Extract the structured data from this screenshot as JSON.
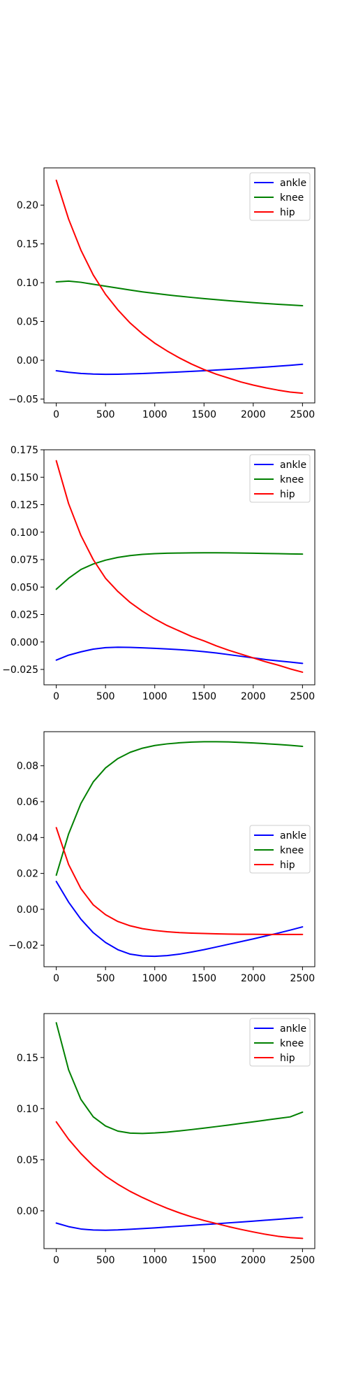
{
  "chart_data": [
    {
      "type": "line",
      "xlim": [
        -125,
        2625
      ],
      "ylim": [
        -0.055,
        0.248
      ],
      "xticks": [
        0,
        500,
        1000,
        1500,
        2000,
        2500
      ],
      "yticks": [
        -0.05,
        0.0,
        0.05,
        0.1,
        0.15,
        0.2
      ],
      "ytick_labels": [
        "−0.05",
        "0.00",
        "0.05",
        "0.10",
        "0.15",
        "0.20"
      ],
      "legend": "top-right",
      "grid": false,
      "series": [
        {
          "name": "ankle",
          "color": "#0000ff",
          "x": [
            0,
            125,
            250,
            375,
            500,
            625,
            750,
            875,
            1000,
            1125,
            1250,
            1375,
            1500,
            1625,
            1750,
            1875,
            2000,
            2125,
            2250,
            2375,
            2500
          ],
          "values": [
            -0.0135,
            -0.0155,
            -0.017,
            -0.0178,
            -0.0181,
            -0.018,
            -0.0176,
            -0.0171,
            -0.0165,
            -0.0158,
            -0.0151,
            -0.0143,
            -0.0135,
            -0.0126,
            -0.0117,
            -0.0108,
            -0.0098,
            -0.0088,
            -0.0077,
            -0.0065,
            -0.0052
          ]
        },
        {
          "name": "knee",
          "color": "#008000",
          "x": [
            0,
            125,
            250,
            375,
            500,
            625,
            750,
            875,
            1000,
            1125,
            1250,
            1375,
            1500,
            1625,
            1750,
            1875,
            2000,
            2125,
            2250,
            2375,
            2500
          ],
          "values": [
            0.101,
            0.102,
            0.1005,
            0.098,
            0.0955,
            0.093,
            0.0905,
            0.0882,
            0.0862,
            0.0843,
            0.0826,
            0.081,
            0.0795,
            0.0781,
            0.0768,
            0.0755,
            0.0743,
            0.0732,
            0.0722,
            0.0712,
            0.0703
          ]
        },
        {
          "name": "hip",
          "color": "#ff0000",
          "x": [
            0,
            125,
            250,
            375,
            500,
            625,
            750,
            875,
            1000,
            1125,
            1250,
            1375,
            1500,
            1625,
            1750,
            1875,
            2000,
            2125,
            2250,
            2375,
            2500
          ],
          "values": [
            0.232,
            0.182,
            0.142,
            0.11,
            0.085,
            0.065,
            0.048,
            0.034,
            0.022,
            0.012,
            0.003,
            -0.005,
            -0.012,
            -0.018,
            -0.023,
            -0.028,
            -0.032,
            -0.0355,
            -0.0385,
            -0.041,
            -0.0425
          ]
        }
      ]
    },
    {
      "type": "line",
      "xlim": [
        -125,
        2625
      ],
      "ylim": [
        -0.039,
        0.175
      ],
      "xticks": [
        0,
        500,
        1000,
        1500,
        2000,
        2500
      ],
      "yticks": [
        -0.025,
        0.0,
        0.025,
        0.05,
        0.075,
        0.1,
        0.125,
        0.15,
        0.175
      ],
      "ytick_labels": [
        "−0.025",
        "0.000",
        "0.025",
        "0.050",
        "0.075",
        "0.100",
        "0.125",
        "0.150",
        "0.175"
      ],
      "legend": "top-right",
      "grid": false,
      "series": [
        {
          "name": "ankle",
          "color": "#0000ff",
          "x": [
            0,
            125,
            250,
            375,
            500,
            625,
            750,
            875,
            1000,
            1125,
            1250,
            1375,
            1500,
            1625,
            1750,
            1875,
            2000,
            2125,
            2250,
            2375,
            2500
          ],
          "values": [
            -0.0165,
            -0.012,
            -0.009,
            -0.0065,
            -0.0052,
            -0.0048,
            -0.0049,
            -0.0053,
            -0.0058,
            -0.0064,
            -0.007,
            -0.0078,
            -0.0088,
            -0.01,
            -0.0115,
            -0.013,
            -0.0145,
            -0.016,
            -0.0172,
            -0.0183,
            -0.0195
          ]
        },
        {
          "name": "knee",
          "color": "#008000",
          "x": [
            0,
            125,
            250,
            375,
            500,
            625,
            750,
            875,
            1000,
            1125,
            1250,
            1375,
            1500,
            1625,
            1750,
            1875,
            2000,
            2125,
            2250,
            2375,
            2500
          ],
          "values": [
            0.048,
            0.058,
            0.066,
            0.071,
            0.0745,
            0.077,
            0.0787,
            0.0798,
            0.0804,
            0.0808,
            0.081,
            0.0811,
            0.0812,
            0.0812,
            0.0811,
            0.081,
            0.0808,
            0.0806,
            0.0804,
            0.0802,
            0.08
          ]
        },
        {
          "name": "hip",
          "color": "#ff0000",
          "x": [
            0,
            125,
            250,
            375,
            500,
            625,
            750,
            875,
            1000,
            1125,
            1250,
            1375,
            1500,
            1625,
            1750,
            1875,
            2000,
            2125,
            2250,
            2375,
            2500
          ],
          "values": [
            0.165,
            0.126,
            0.097,
            0.075,
            0.058,
            0.046,
            0.036,
            0.028,
            0.021,
            0.015,
            0.01,
            0.005,
            0.001,
            -0.0035,
            -0.0075,
            -0.011,
            -0.0145,
            -0.018,
            -0.021,
            -0.0245,
            -0.0275
          ]
        }
      ]
    },
    {
      "type": "line",
      "xlim": [
        -125,
        2625
      ],
      "ylim": [
        -0.032,
        0.099
      ],
      "xticks": [
        0,
        500,
        1000,
        1500,
        2000,
        2500
      ],
      "yticks": [
        -0.02,
        0.0,
        0.02,
        0.04,
        0.06,
        0.08
      ],
      "ytick_labels": [
        "−0.02",
        "0.00",
        "0.02",
        "0.04",
        "0.06",
        "0.08"
      ],
      "legend": "center-right",
      "grid": false,
      "series": [
        {
          "name": "ankle",
          "color": "#0000ff",
          "x": [
            0,
            125,
            250,
            375,
            500,
            625,
            750,
            875,
            1000,
            1125,
            1250,
            1375,
            1500,
            1625,
            1750,
            1875,
            2000,
            2125,
            2250,
            2375,
            2500
          ],
          "values": [
            0.0155,
            0.004,
            -0.0055,
            -0.013,
            -0.0185,
            -0.0225,
            -0.025,
            -0.026,
            -0.0262,
            -0.0258,
            -0.025,
            -0.0238,
            -0.0225,
            -0.021,
            -0.0195,
            -0.018,
            -0.0165,
            -0.0149,
            -0.0133,
            -0.0116,
            -0.0098
          ]
        },
        {
          "name": "knee",
          "color": "#008000",
          "x": [
            0,
            125,
            250,
            375,
            500,
            625,
            750,
            875,
            1000,
            1125,
            1250,
            1375,
            1500,
            1625,
            1750,
            1875,
            2000,
            2125,
            2250,
            2375,
            2500
          ],
          "values": [
            0.019,
            0.042,
            0.059,
            0.071,
            0.0788,
            0.084,
            0.0875,
            0.0898,
            0.0913,
            0.0922,
            0.0928,
            0.0932,
            0.0934,
            0.0934,
            0.0933,
            0.093,
            0.0927,
            0.0923,
            0.0919,
            0.0914,
            0.0908
          ]
        },
        {
          "name": "hip",
          "color": "#ff0000",
          "x": [
            0,
            125,
            250,
            375,
            500,
            625,
            750,
            875,
            1000,
            1125,
            1250,
            1375,
            1500,
            1625,
            1750,
            1875,
            2000,
            2125,
            2250,
            2375,
            2500
          ],
          "values": [
            0.0455,
            0.025,
            0.0115,
            0.0025,
            -0.003,
            -0.0068,
            -0.0092,
            -0.0108,
            -0.0118,
            -0.0125,
            -0.013,
            -0.0133,
            -0.0135,
            -0.0137,
            -0.0138,
            -0.0139,
            -0.0139,
            -0.014,
            -0.014,
            -0.014,
            -0.014
          ]
        }
      ]
    },
    {
      "type": "line",
      "xlim": [
        -125,
        2625
      ],
      "ylim": [
        -0.037,
        0.193
      ],
      "xticks": [
        0,
        500,
        1000,
        1500,
        2000,
        2500
      ],
      "yticks": [
        0.0,
        0.05,
        0.1,
        0.15
      ],
      "ytick_labels": [
        "0.00",
        "0.05",
        "0.10",
        "0.15"
      ],
      "legend": "top-right",
      "grid": false,
      "series": [
        {
          "name": "ankle",
          "color": "#0000ff",
          "x": [
            0,
            125,
            250,
            375,
            500,
            625,
            750,
            875,
            1000,
            1125,
            1250,
            1375,
            1500,
            1625,
            1750,
            1875,
            2000,
            2125,
            2250,
            2375,
            2500
          ],
          "values": [
            -0.012,
            -0.0155,
            -0.0178,
            -0.0188,
            -0.019,
            -0.0187,
            -0.0181,
            -0.0174,
            -0.0167,
            -0.0159,
            -0.0151,
            -0.0143,
            -0.0135,
            -0.0127,
            -0.0118,
            -0.011,
            -0.0101,
            -0.0092,
            -0.0083,
            -0.0074,
            -0.0065
          ]
        },
        {
          "name": "knee",
          "color": "#008000",
          "x": [
            0,
            125,
            250,
            375,
            500,
            625,
            750,
            875,
            1000,
            1125,
            1250,
            1375,
            1500,
            1625,
            1750,
            1875,
            2000,
            2125,
            2250,
            2375,
            2500
          ],
          "values": [
            0.184,
            0.138,
            0.109,
            0.092,
            0.083,
            0.078,
            0.076,
            0.0757,
            0.0762,
            0.077,
            0.0782,
            0.0795,
            0.0809,
            0.0824,
            0.0839,
            0.0855,
            0.0871,
            0.0887,
            0.0903,
            0.0919,
            0.0965
          ]
        },
        {
          "name": "hip",
          "color": "#ff0000",
          "x": [
            0,
            125,
            250,
            375,
            500,
            625,
            750,
            875,
            1000,
            1125,
            1250,
            1375,
            1500,
            1625,
            1750,
            1875,
            2000,
            2125,
            2250,
            2375,
            2500
          ],
          "values": [
            0.087,
            0.07,
            0.056,
            0.044,
            0.034,
            0.026,
            0.019,
            0.013,
            0.0075,
            0.0025,
            -0.002,
            -0.006,
            -0.0095,
            -0.0125,
            -0.0155,
            -0.0182,
            -0.0207,
            -0.023,
            -0.0249,
            -0.0262,
            -0.027
          ]
        }
      ]
    }
  ]
}
